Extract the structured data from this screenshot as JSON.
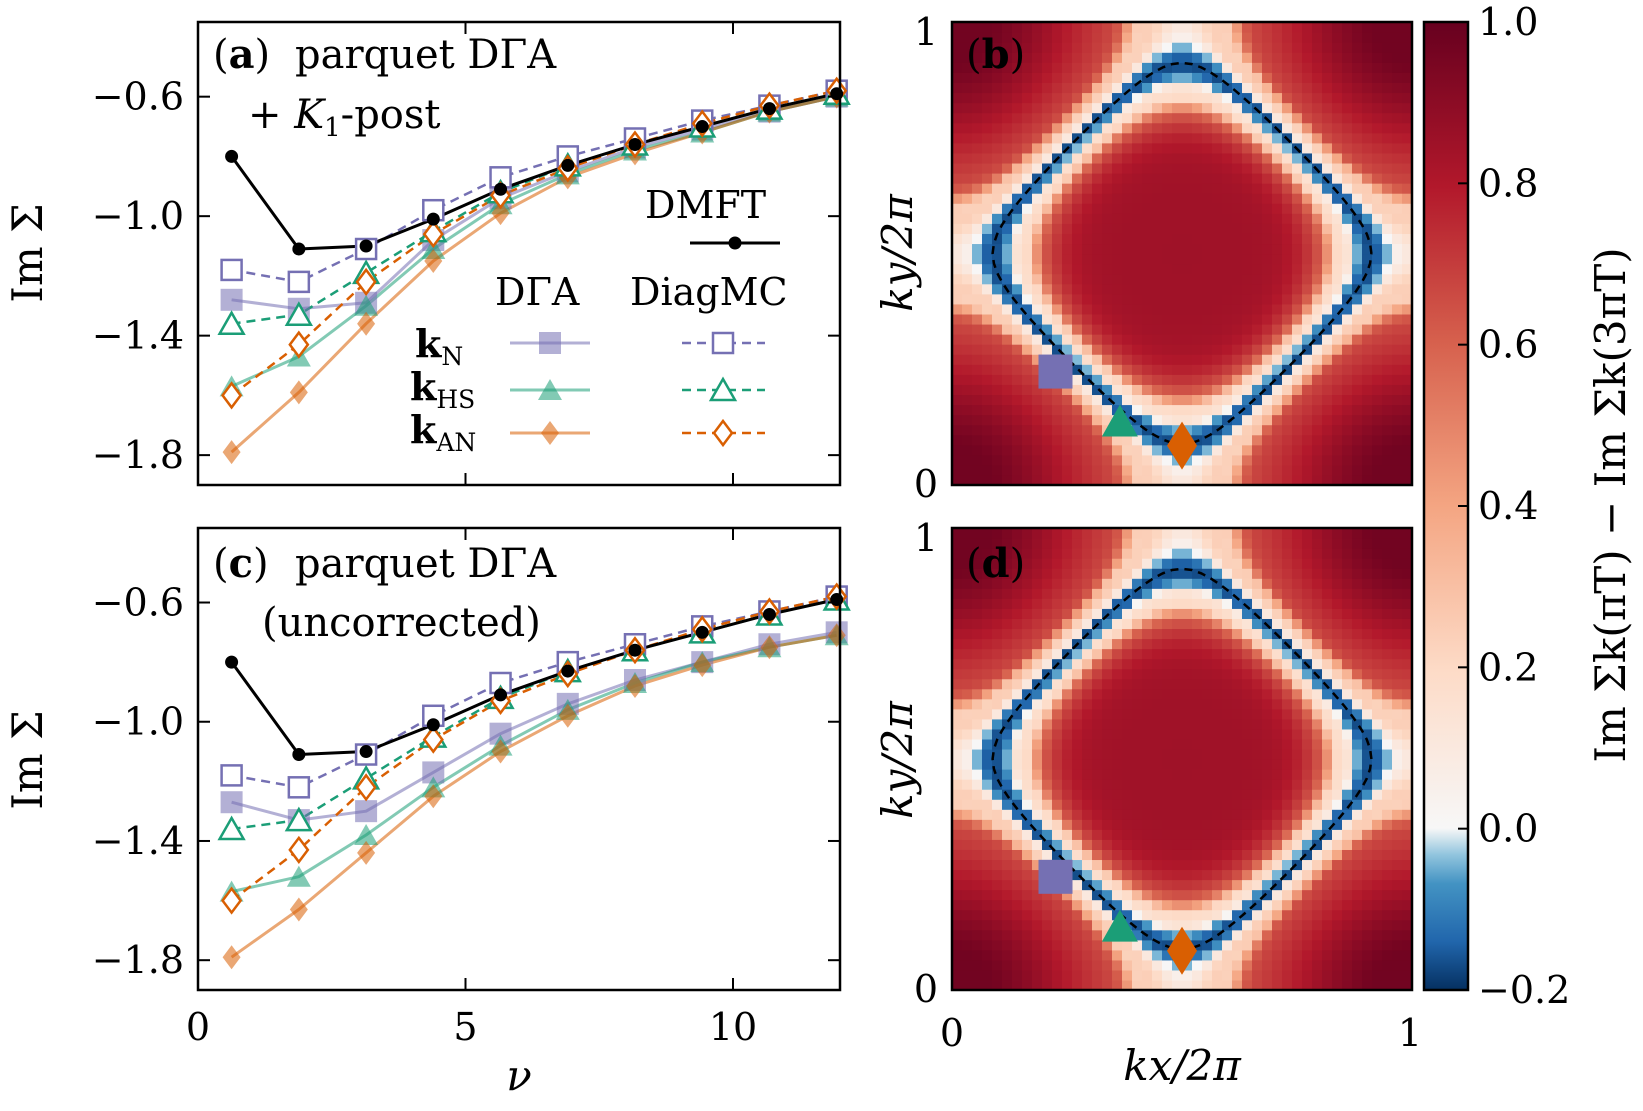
{
  "chart_data": [
    {
      "id": "a",
      "type": "line",
      "panel_label": "a",
      "title_line1": "parquet DΓA",
      "title_line2": "+ K1-post",
      "xlabel": "ν",
      "ylabel": "Im Σ",
      "xlim": [
        0,
        12
      ],
      "ylim": [
        -1.9,
        -0.35
      ],
      "xticks": [
        0,
        5,
        10
      ],
      "yticks": [
        -0.6,
        -1.0,
        -1.4,
        -1.8
      ],
      "x": [
        0.628,
        1.885,
        3.142,
        4.398,
        5.655,
        6.912,
        8.168,
        9.425,
        10.681,
        11.938
      ],
      "series": [
        {
          "name": "DMFT",
          "values": [
            -0.8,
            -1.11,
            -1.1,
            -1.01,
            -0.91,
            -0.83,
            -0.76,
            -0.7,
            -0.64,
            -0.59
          ]
        },
        {
          "name": "DΓA kN",
          "values": [
            -1.28,
            -1.31,
            -1.29,
            -1.08,
            -0.94,
            -0.85,
            -0.77,
            -0.71,
            -0.65,
            -0.6
          ]
        },
        {
          "name": "DΓA kHS",
          "values": [
            -1.57,
            -1.47,
            -1.3,
            -1.11,
            -0.96,
            -0.86,
            -0.78,
            -0.72,
            -0.65,
            -0.6
          ]
        },
        {
          "name": "DΓA kAN",
          "values": [
            -1.79,
            -1.59,
            -1.36,
            -1.15,
            -0.99,
            -0.87,
            -0.79,
            -0.72,
            -0.65,
            -0.6
          ]
        },
        {
          "name": "DiagMC kN",
          "values": [
            -1.18,
            -1.22,
            -1.11,
            -0.98,
            -0.87,
            -0.8,
            -0.74,
            -0.68,
            -0.63,
            -0.58
          ]
        },
        {
          "name": "DiagMC kHS",
          "values": [
            -1.36,
            -1.33,
            -1.19,
            -1.05,
            -0.92,
            -0.83,
            -0.76,
            -0.7,
            -0.64,
            -0.59
          ]
        },
        {
          "name": "DiagMC kAN",
          "values": [
            -1.6,
            -1.43,
            -1.22,
            -1.06,
            -0.93,
            -0.84,
            -0.76,
            -0.69,
            -0.63,
            -0.58
          ]
        }
      ],
      "legend": {
        "dmft_label": "DMFT",
        "dga_header": "DΓA",
        "diagmc_header": "DiagMC",
        "row_labels": [
          {
            "main": "k",
            "sub": "N"
          },
          {
            "main": "k",
            "sub": "HS"
          },
          {
            "main": "k",
            "sub": "AN"
          }
        ]
      }
    },
    {
      "id": "c",
      "type": "line",
      "panel_label": "c",
      "title_line1": "parquet DΓA",
      "title_line2": "(uncorrected)",
      "xlabel": "ν",
      "ylabel": "Im Σ",
      "xlim": [
        0,
        12
      ],
      "ylim": [
        -1.9,
        -0.35
      ],
      "xticks": [
        0,
        5,
        10
      ],
      "xtick_labels": [
        "0",
        "5",
        "10"
      ],
      "yticks": [
        -0.6,
        -1.0,
        -1.4,
        -1.8
      ],
      "x": [
        0.628,
        1.885,
        3.142,
        4.398,
        5.655,
        6.912,
        8.168,
        9.425,
        10.681,
        11.938
      ],
      "series": [
        {
          "name": "DMFT",
          "values": [
            -0.8,
            -1.11,
            -1.1,
            -1.01,
            -0.91,
            -0.83,
            -0.76,
            -0.7,
            -0.64,
            -0.59
          ]
        },
        {
          "name": "DΓA kN",
          "values": [
            -1.27,
            -1.33,
            -1.3,
            -1.17,
            -1.04,
            -0.94,
            -0.86,
            -0.8,
            -0.74,
            -0.7
          ]
        },
        {
          "name": "DΓA kHS",
          "values": [
            -1.57,
            -1.52,
            -1.38,
            -1.22,
            -1.08,
            -0.96,
            -0.87,
            -0.8,
            -0.75,
            -0.71
          ]
        },
        {
          "name": "DΓA kAN",
          "values": [
            -1.79,
            -1.63,
            -1.44,
            -1.25,
            -1.1,
            -0.98,
            -0.88,
            -0.81,
            -0.75,
            -0.71
          ]
        },
        {
          "name": "DiagMC kN",
          "values": [
            -1.18,
            -1.22,
            -1.11,
            -0.98,
            -0.87,
            -0.8,
            -0.74,
            -0.68,
            -0.63,
            -0.58
          ]
        },
        {
          "name": "DiagMC kHS",
          "values": [
            -1.36,
            -1.33,
            -1.19,
            -1.05,
            -0.92,
            -0.83,
            -0.76,
            -0.7,
            -0.64,
            -0.59
          ]
        },
        {
          "name": "DiagMC kAN",
          "values": [
            -1.6,
            -1.43,
            -1.22,
            -1.06,
            -0.93,
            -0.84,
            -0.76,
            -0.69,
            -0.63,
            -0.58
          ]
        }
      ]
    },
    {
      "id": "b",
      "type": "heatmap",
      "panel_label": "b",
      "xlabel": "kx/2π",
      "ylabel": "ky/2π",
      "xlim": [
        0,
        1
      ],
      "ylim": [
        0,
        1
      ],
      "ytick_labels": [
        "0",
        "1"
      ],
      "markers": [
        {
          "name": "kN",
          "kx": 0.225,
          "ky": 0.245,
          "shape": "square"
        },
        {
          "name": "kHS",
          "kx": 0.365,
          "ky": 0.135,
          "shape": "triangle"
        },
        {
          "name": "kAN",
          "kx": 0.5,
          "ky": 0.085,
          "shape": "diamond"
        }
      ]
    },
    {
      "id": "d",
      "type": "heatmap",
      "panel_label": "d",
      "xlabel": "kx/2π",
      "ylabel": "ky/2π",
      "xlim": [
        0,
        1
      ],
      "ylim": [
        0,
        1
      ],
      "xtick_labels": [
        "0",
        "1"
      ],
      "ytick_labels": [
        "0",
        "1"
      ],
      "markers": [
        {
          "name": "kN",
          "kx": 0.225,
          "ky": 0.245,
          "shape": "square"
        },
        {
          "name": "kHS",
          "kx": 0.365,
          "ky": 0.135,
          "shape": "triangle"
        },
        {
          "name": "kAN",
          "kx": 0.5,
          "ky": 0.085,
          "shape": "diamond"
        }
      ]
    },
    {
      "id": "colorbar",
      "type": "colorbar",
      "range": [
        -0.2,
        1.0
      ],
      "ticks": [
        1.0,
        0.8,
        0.6,
        0.4,
        0.2,
        0.0,
        -0.2
      ],
      "tick_labels": [
        "1.0",
        "0.8",
        "0.6",
        "0.4",
        "0.2",
        "0.0",
        "−0.2"
      ],
      "label": "Im Σk(πT) − Im Σk(3πT)"
    }
  ],
  "colors": {
    "dmft": "#000000",
    "kN": "#7570b3",
    "kHS": "#1b9e77",
    "kAN": "#d95f02"
  }
}
